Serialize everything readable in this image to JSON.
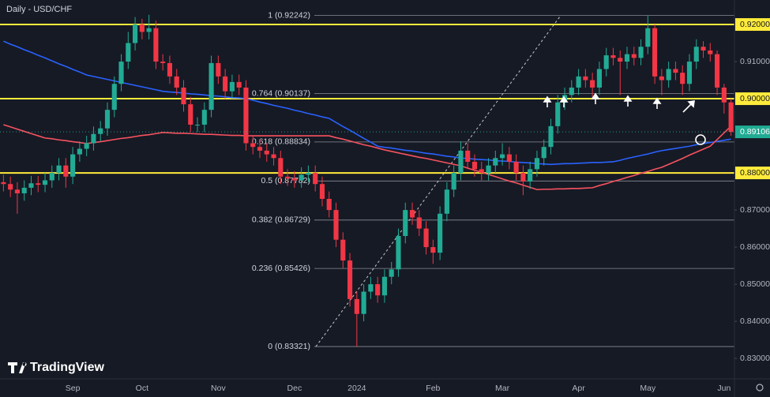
{
  "chart_data": {
    "type": "candlestick",
    "title": "Daily - USD/CHF",
    "brand": "TradingView",
    "up_color": "#22ab94",
    "down_color": "#f23645",
    "ylim": [
      0.8245,
      0.9266
    ],
    "yticks": [
      {
        "value": 0.83,
        "label": "0.83000"
      },
      {
        "value": 0.84,
        "label": "0.84000"
      },
      {
        "value": 0.85,
        "label": "0.85000"
      },
      {
        "value": 0.86,
        "label": "0.86000"
      },
      {
        "value": 0.87,
        "label": "0.87000"
      },
      {
        "value": 0.91,
        "label": "0.91000"
      }
    ],
    "categories": [
      null,
      null,
      null,
      null,
      null,
      null,
      null,
      null,
      null,
      null,
      "Sep",
      null,
      null,
      null,
      null,
      null,
      null,
      null,
      null,
      null,
      "Oct",
      null,
      null,
      null,
      null,
      null,
      null,
      null,
      null,
      null,
      null,
      "Nov",
      null,
      null,
      null,
      null,
      null,
      null,
      null,
      null,
      null,
      null,
      "Dec",
      null,
      null,
      null,
      null,
      null,
      null,
      null,
      null,
      "2024",
      null,
      null,
      null,
      null,
      null,
      null,
      null,
      null,
      null,
      null,
      "Feb",
      null,
      null,
      null,
      null,
      null,
      null,
      null,
      null,
      null,
      "Mar",
      null,
      null,
      null,
      null,
      null,
      null,
      null,
      null,
      null,
      null,
      "Apr",
      null,
      null,
      null,
      null,
      null,
      null,
      null,
      null,
      null,
      "May",
      null,
      null,
      null,
      null,
      null,
      null,
      null,
      null,
      null,
      null,
      "Jun",
      null
    ],
    "open": [
      0.8775,
      0.877,
      0.8755,
      0.8745,
      0.876,
      0.8772,
      0.8768,
      0.878,
      0.88,
      0.882,
      0.879,
      0.885,
      0.8865,
      0.888,
      0.8905,
      0.892,
      0.897,
      0.904,
      0.91,
      0.915,
      0.92,
      0.918,
      0.919,
      0.91,
      0.9096,
      0.906,
      0.903,
      0.8985,
      0.893,
      0.893,
      0.897,
      0.9096,
      0.906,
      0.902,
      0.9045,
      0.903,
      0.888,
      0.887,
      0.886,
      0.885,
      0.884,
      0.879,
      0.8785,
      0.878,
      0.8795,
      0.88,
      0.877,
      0.873,
      0.87,
      0.862,
      0.8564,
      0.846,
      0.842,
      0.848,
      0.85,
      0.847,
      0.852,
      0.854,
      0.863,
      0.87,
      0.868,
      0.865,
      0.86,
      0.8585,
      0.869,
      0.8755,
      0.88,
      0.886,
      0.883,
      0.881,
      0.88,
      0.882,
      0.884,
      0.885,
      0.883,
      0.88,
      0.8777,
      0.881,
      0.884,
      0.887,
      0.8926,
      0.899,
      0.901,
      0.903,
      0.906,
      0.905,
      0.903,
      0.908,
      0.9117,
      0.911,
      0.91,
      0.912,
      0.911,
      0.914,
      0.919,
      0.906,
      0.905,
      0.908,
      0.907,
      0.904,
      0.91,
      0.914,
      0.913,
      0.912,
      0.903,
      0.899
    ],
    "high": [
      0.8795,
      0.879,
      0.8775,
      0.878,
      0.8792,
      0.8792,
      0.88,
      0.882,
      0.884,
      0.884,
      0.887,
      0.8885,
      0.89,
      0.8925,
      0.894,
      0.899,
      0.906,
      0.912,
      0.918,
      0.922,
      0.9215,
      0.9226,
      0.921,
      0.912,
      0.9116,
      0.908,
      0.905,
      0.9005,
      0.895,
      0.899,
      0.9116,
      0.9116,
      0.908,
      0.9065,
      0.9065,
      0.905,
      0.89,
      0.889,
      0.888,
      0.887,
      0.886,
      0.881,
      0.8805,
      0.8815,
      0.882,
      0.882,
      0.879,
      0.875,
      0.872,
      0.864,
      0.8584,
      0.848,
      0.85,
      0.852,
      0.852,
      0.854,
      0.856,
      0.865,
      0.872,
      0.872,
      0.87,
      0.867,
      0.862,
      0.871,
      0.8775,
      0.882,
      0.8885,
      0.888,
      0.885,
      0.883,
      0.884,
      0.886,
      0.888,
      0.887,
      0.885,
      0.882,
      0.883,
      0.886,
      0.889,
      0.8946,
      0.901,
      0.903,
      0.905,
      0.908,
      0.908,
      0.907,
      0.91,
      0.9137,
      0.9137,
      0.913,
      0.914,
      0.914,
      0.916,
      0.9224,
      0.92,
      0.908,
      0.91,
      0.91,
      0.909,
      0.912,
      0.916,
      0.9155,
      0.915,
      0.913,
      0.904,
      0.9
    ],
    "low": [
      0.875,
      0.8735,
      0.869,
      0.8725,
      0.874,
      0.8748,
      0.8748,
      0.876,
      0.878,
      0.876,
      0.877,
      0.883,
      0.8845,
      0.886,
      0.8885,
      0.89,
      0.895,
      0.902,
      0.908,
      0.913,
      0.916,
      0.916,
      0.908,
      0.9076,
      0.904,
      0.901,
      0.8965,
      0.891,
      0.891,
      0.891,
      0.895,
      0.904,
      0.9,
      0.9,
      0.901,
      0.886,
      0.885,
      0.884,
      0.883,
      0.882,
      0.877,
      0.8765,
      0.876,
      0.876,
      0.8775,
      0.875,
      0.871,
      0.868,
      0.86,
      0.8544,
      0.844,
      0.8332,
      0.84,
      0.846,
      0.845,
      0.845,
      0.85,
      0.852,
      0.861,
      0.866,
      0.863,
      0.858,
      0.8555,
      0.8565,
      0.867,
      0.8735,
      0.878,
      0.881,
      0.879,
      0.878,
      0.878,
      0.88,
      0.882,
      0.881,
      0.878,
      0.874,
      0.8757,
      0.879,
      0.882,
      0.885,
      0.8906,
      0.897,
      0.899,
      0.901,
      0.903,
      0.9,
      0.901,
      0.906,
      0.909,
      0.901,
      0.908,
      0.909,
      0.909,
      0.912,
      0.904,
      0.901,
      0.903,
      0.905,
      0.901,
      0.902,
      0.908,
      0.911,
      0.91,
      0.901,
      0.896,
      0.89
    ],
    "close": [
      0.877,
      0.8755,
      0.8745,
      0.876,
      0.8772,
      0.8768,
      0.878,
      0.88,
      0.882,
      0.879,
      0.885,
      0.8865,
      0.888,
      0.8905,
      0.892,
      0.897,
      0.904,
      0.91,
      0.915,
      0.92,
      0.918,
      0.919,
      0.91,
      0.9096,
      0.906,
      0.903,
      0.8985,
      0.893,
      0.893,
      0.897,
      0.9096,
      0.906,
      0.902,
      0.9045,
      0.903,
      0.888,
      0.887,
      0.886,
      0.885,
      0.884,
      0.879,
      0.8785,
      0.878,
      0.8795,
      0.88,
      0.877,
      0.873,
      0.87,
      0.862,
      0.8564,
      0.846,
      0.842,
      0.848,
      0.85,
      0.847,
      0.852,
      0.854,
      0.863,
      0.87,
      0.868,
      0.865,
      0.86,
      0.8585,
      0.869,
      0.8755,
      0.88,
      0.886,
      0.883,
      0.881,
      0.88,
      0.882,
      0.884,
      0.885,
      0.883,
      0.88,
      0.8777,
      0.881,
      0.884,
      0.887,
      0.8926,
      0.899,
      0.901,
      0.903,
      0.906,
      0.905,
      0.903,
      0.908,
      0.9117,
      0.911,
      0.91,
      0.912,
      0.911,
      0.914,
      0.919,
      0.906,
      0.905,
      0.908,
      0.907,
      0.904,
      0.91,
      0.914,
      0.913,
      0.912,
      0.903,
      0.899,
      0.89106
    ],
    "overlays": [
      {
        "color": "#2962ff",
        "values": [
          0.9155,
          0.9147,
          0.914,
          0.9132,
          0.9125,
          0.9117,
          0.911,
          0.9102,
          0.9094,
          0.9087,
          0.9079,
          0.9072,
          0.9064,
          0.906,
          0.9056,
          0.9052,
          0.9048,
          0.9044,
          0.904,
          0.9036,
          0.9032,
          0.9028,
          0.9024,
          0.902,
          0.9018,
          0.9017,
          0.9015,
          0.9013,
          0.9012,
          0.901,
          0.9008,
          0.9007,
          0.9005,
          0.9003,
          0.9002,
          0.9,
          0.8996,
          0.8991,
          0.8987,
          0.8982,
          0.8978,
          0.8974,
          0.8969,
          0.8965,
          0.896,
          0.8956,
          0.8951,
          0.8947,
          0.8936,
          0.8925,
          0.8915,
          0.8904,
          0.8893,
          0.8883,
          0.8872,
          0.8869,
          0.8867,
          0.8864,
          0.8861,
          0.8859,
          0.8856,
          0.8853,
          0.8851,
          0.8848,
          0.8845,
          0.8843,
          0.884,
          0.8839,
          0.8837,
          0.8836,
          0.8835,
          0.8833,
          0.8832,
          0.8831,
          0.8829,
          0.8828,
          0.8827,
          0.8825,
          0.8824,
          0.8823,
          0.8824,
          0.8825,
          0.8825,
          0.8826,
          0.8827,
          0.8828,
          0.8828,
          0.8829,
          0.883,
          0.8834,
          0.8839,
          0.8843,
          0.8847,
          0.8851,
          0.8856,
          0.886,
          0.8863,
          0.8866,
          0.8869,
          0.8872,
          0.8876,
          0.8879,
          0.8882,
          0.8885,
          0.8888,
          0.8891
        ]
      },
      {
        "color": "#f7525f",
        "values": [
          0.893,
          0.8924,
          0.8918,
          0.8912,
          0.8906,
          0.89,
          0.8894,
          0.8892,
          0.8889,
          0.8887,
          0.8884,
          0.8882,
          0.8879,
          0.8882,
          0.8884,
          0.8887,
          0.889,
          0.8893,
          0.8895,
          0.8898,
          0.8901,
          0.8903,
          0.8906,
          0.8909,
          0.8908,
          0.8907,
          0.8907,
          0.8906,
          0.8905,
          0.8904,
          0.8904,
          0.8903,
          0.8902,
          0.8901,
          0.8901,
          0.89,
          0.89,
          0.89,
          0.89,
          0.89,
          0.89,
          0.89,
          0.89,
          0.89,
          0.89,
          0.89,
          0.89,
          0.89,
          0.8895,
          0.8891,
          0.8886,
          0.8881,
          0.8876,
          0.8872,
          0.8867,
          0.8862,
          0.8858,
          0.8854,
          0.885,
          0.8846,
          0.8842,
          0.8839,
          0.8835,
          0.8831,
          0.8827,
          0.8823,
          0.8819,
          0.8813,
          0.8807,
          0.8802,
          0.8796,
          0.879,
          0.8784,
          0.8778,
          0.8773,
          0.8767,
          0.8761,
          0.8755,
          0.8756,
          0.8756,
          0.8757,
          0.8757,
          0.8758,
          0.8758,
          0.8759,
          0.876,
          0.8766,
          0.8771,
          0.8777,
          0.8782,
          0.8788,
          0.8793,
          0.8799,
          0.8804,
          0.881,
          0.8815,
          0.8823,
          0.8831,
          0.8839,
          0.8848,
          0.8856,
          0.8864,
          0.8872,
          0.889,
          0.8908,
          0.8926
        ]
      }
    ],
    "hline_color": "#ffeb3b",
    "hlines": [
      {
        "value": 0.92,
        "label": "0.92000"
      },
      {
        "value": 0.9,
        "label": "0.90000"
      },
      {
        "value": 0.88,
        "label": "0.88000"
      }
    ],
    "last_price": {
      "value": 0.89106,
      "label": "0.89106",
      "color": "#22ab94"
    },
    "levels": [
      {
        "label": "1 (0.92242)",
        "value": 0.92242
      },
      {
        "label": "0.764 (0.90137)",
        "value": 0.90137
      },
      {
        "label": "0.618 (0.88834)",
        "value": 0.88834
      },
      {
        "label": "0.5 (0.87782)",
        "value": 0.87782
      },
      {
        "label": "0.382 (0.86729)",
        "value": 0.86729
      },
      {
        "label": "0.236 (0.85426)",
        "value": 0.85426
      },
      {
        "label": "0 (0.83321)",
        "value": 0.83321
      }
    ]
  }
}
